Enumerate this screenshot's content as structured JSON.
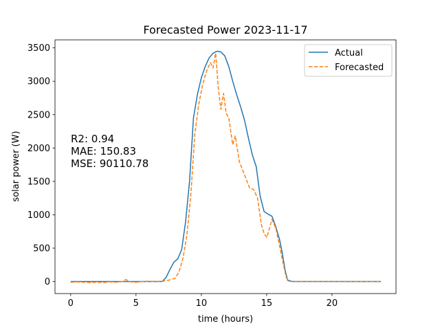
{
  "chart_data": {
    "type": "line",
    "title": "Forecasted Power 2023-11-17",
    "xlabel": "time (hours)",
    "ylabel": "solar power (W)",
    "xlim": [
      -1.2,
      24.9
    ],
    "ylim": [
      -180,
      3620
    ],
    "xticks": [
      0,
      5,
      10,
      15,
      20
    ],
    "yticks": [
      0,
      500,
      1000,
      1500,
      2000,
      2500,
      3000,
      3500
    ],
    "grid": false,
    "legend_position": "top-right",
    "annotations": [
      "R2: 0.94",
      "MAE: 150.83",
      "MSE: 90110.78"
    ],
    "series": [
      {
        "name": "Actual",
        "color": "#1f77b4",
        "style": "solid",
        "points": [
          [
            0,
            0
          ],
          [
            1,
            0
          ],
          [
            2,
            0
          ],
          [
            3,
            0
          ],
          [
            4,
            0
          ],
          [
            5,
            0
          ],
          [
            6,
            0
          ],
          [
            7,
            0
          ],
          [
            7.3,
            60
          ],
          [
            7.6,
            180
          ],
          [
            7.9,
            290
          ],
          [
            8.2,
            340
          ],
          [
            8.5,
            480
          ],
          [
            8.8,
            900
          ],
          [
            9.1,
            1500
          ],
          [
            9.4,
            2450
          ],
          [
            9.7,
            2800
          ],
          [
            10.0,
            3050
          ],
          [
            10.3,
            3220
          ],
          [
            10.6,
            3350
          ],
          [
            10.9,
            3420
          ],
          [
            11.2,
            3450
          ],
          [
            11.5,
            3440
          ],
          [
            11.8,
            3380
          ],
          [
            12.1,
            3220
          ],
          [
            12.4,
            3000
          ],
          [
            12.7,
            2800
          ],
          [
            13.0,
            2620
          ],
          [
            13.3,
            2420
          ],
          [
            13.6,
            2150
          ],
          [
            13.9,
            1900
          ],
          [
            14.2,
            1720
          ],
          [
            14.5,
            1280
          ],
          [
            14.8,
            1050
          ],
          [
            15.1,
            1010
          ],
          [
            15.4,
            980
          ],
          [
            15.7,
            820
          ],
          [
            16.0,
            620
          ],
          [
            16.2,
            420
          ],
          [
            16.4,
            180
          ],
          [
            16.6,
            20
          ],
          [
            17,
            0
          ],
          [
            18,
            0
          ],
          [
            20,
            0
          ],
          [
            22,
            0
          ],
          [
            23.75,
            0
          ]
        ]
      },
      {
        "name": "Forecasted",
        "color": "#ff7f0e",
        "style": "dashed",
        "points": [
          [
            0,
            -10
          ],
          [
            0.5,
            -5
          ],
          [
            1,
            -10
          ],
          [
            1.5,
            -15
          ],
          [
            2,
            -10
          ],
          [
            2.5,
            -15
          ],
          [
            3,
            -5
          ],
          [
            3.5,
            -10
          ],
          [
            4,
            0
          ],
          [
            4.2,
            30
          ],
          [
            4.4,
            15
          ],
          [
            4.6,
            -5
          ],
          [
            5,
            -10
          ],
          [
            5.5,
            0
          ],
          [
            6,
            5
          ],
          [
            6.5,
            0
          ],
          [
            7,
            5
          ],
          [
            7.5,
            20
          ],
          [
            8,
            50
          ],
          [
            8.3,
            150
          ],
          [
            8.6,
            350
          ],
          [
            8.9,
            700
          ],
          [
            9.2,
            1300
          ],
          [
            9.5,
            2200
          ],
          [
            9.8,
            2650
          ],
          [
            10.1,
            2950
          ],
          [
            10.4,
            3150
          ],
          [
            10.7,
            3280
          ],
          [
            10.9,
            3200
          ],
          [
            11.1,
            3420
          ],
          [
            11.3,
            2900
          ],
          [
            11.5,
            2580
          ],
          [
            11.7,
            2820
          ],
          [
            11.9,
            2520
          ],
          [
            12.1,
            2450
          ],
          [
            12.4,
            2050
          ],
          [
            12.6,
            2180
          ],
          [
            12.9,
            1800
          ],
          [
            13.2,
            1650
          ],
          [
            13.5,
            1500
          ],
          [
            13.7,
            1400
          ],
          [
            14.0,
            1380
          ],
          [
            14.3,
            1250
          ],
          [
            14.6,
            850
          ],
          [
            14.8,
            720
          ],
          [
            15.0,
            660
          ],
          [
            15.2,
            790
          ],
          [
            15.4,
            930
          ],
          [
            15.7,
            800
          ],
          [
            16.0,
            520
          ],
          [
            16.3,
            240
          ],
          [
            16.5,
            60
          ],
          [
            16.7,
            5
          ],
          [
            17,
            0
          ],
          [
            20,
            0
          ],
          [
            23.75,
            0
          ]
        ]
      }
    ]
  }
}
